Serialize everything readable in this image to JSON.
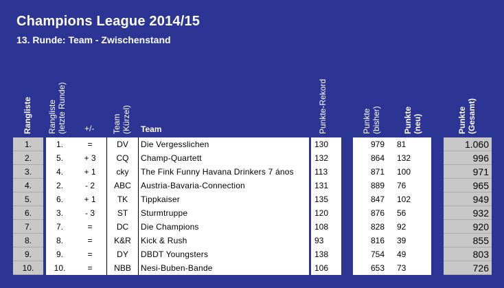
{
  "title": "Champions League 2014/15",
  "subtitle": "13. Runde: Team - Zwischenstand",
  "headers": {
    "rangliste": "Rangliste",
    "rangliste_letzte_line1": "Rangliste",
    "rangliste_letzte_line2": "(letzte Runde)",
    "diff": "+/-",
    "team_kuerzel_line1": "Team",
    "team_kuerzel_line2": "(Kürzel)",
    "team": "Team",
    "punkte_rekord": "Punkte-Rekord",
    "punkte_bisher_line1": "Punkte",
    "punkte_bisher_line2": "(bisher)",
    "punkte_neu_line1": "Punkte",
    "punkte_neu_line2": "(neu)",
    "punkte_gesamt_line1": "Punkte",
    "punkte_gesamt_line2": "(Gesamt)"
  },
  "rows": [
    {
      "rank": "1.",
      "prev": "1.",
      "diff": "=",
      "abbr": "DV",
      "team": "Die Vergesslichen",
      "rekord": "130",
      "bisher": "979",
      "neu": "81",
      "gesamt": "1.060"
    },
    {
      "rank": "2.",
      "prev": "5.",
      "diff": "+ 3",
      "abbr": "CQ",
      "team": "Champ-Quartett",
      "rekord": "132",
      "bisher": "864",
      "neu": "132",
      "gesamt": "996"
    },
    {
      "rank": "3.",
      "prev": "4.",
      "diff": "+ 1",
      "abbr": "cky",
      "team": "The Fink Funny Havana Drinkers 7 ános",
      "rekord": "113",
      "bisher": "871",
      "neu": "100",
      "gesamt": "971"
    },
    {
      "rank": "4.",
      "prev": "2.",
      "diff": "- 2",
      "abbr": "ABC",
      "team": "Austria-Bavaria-Connection",
      "rekord": "131",
      "bisher": "889",
      "neu": "76",
      "gesamt": "965"
    },
    {
      "rank": "5.",
      "prev": "6.",
      "diff": "+ 1",
      "abbr": "TK",
      "team": "Tippkaiser",
      "rekord": "135",
      "bisher": "847",
      "neu": "102",
      "gesamt": "949"
    },
    {
      "rank": "6.",
      "prev": "3.",
      "diff": "- 3",
      "abbr": "ST",
      "team": "Sturmtruppe",
      "rekord": "120",
      "bisher": "876",
      "neu": "56",
      "gesamt": "932"
    },
    {
      "rank": "7.",
      "prev": "7.",
      "diff": "=",
      "abbr": "DC",
      "team": "Die Champions",
      "rekord": "108",
      "bisher": "828",
      "neu": "92",
      "gesamt": "920"
    },
    {
      "rank": "8.",
      "prev": "8.",
      "diff": "=",
      "abbr": "K&R",
      "team": "Kick & Rush",
      "rekord": "93",
      "bisher": "816",
      "neu": "39",
      "gesamt": "855"
    },
    {
      "rank": "9.",
      "prev": "9.",
      "diff": "=",
      "abbr": "DY",
      "team": "DBDT Youngsters",
      "rekord": "138",
      "bisher": "754",
      "neu": "49",
      "gesamt": "803"
    },
    {
      "rank": "10.",
      "prev": "10.",
      "diff": "=",
      "abbr": "NBB",
      "team": "Nesi-Buben-Bande",
      "rekord": "106",
      "bisher": "653",
      "neu": "73",
      "gesamt": "726"
    }
  ]
}
